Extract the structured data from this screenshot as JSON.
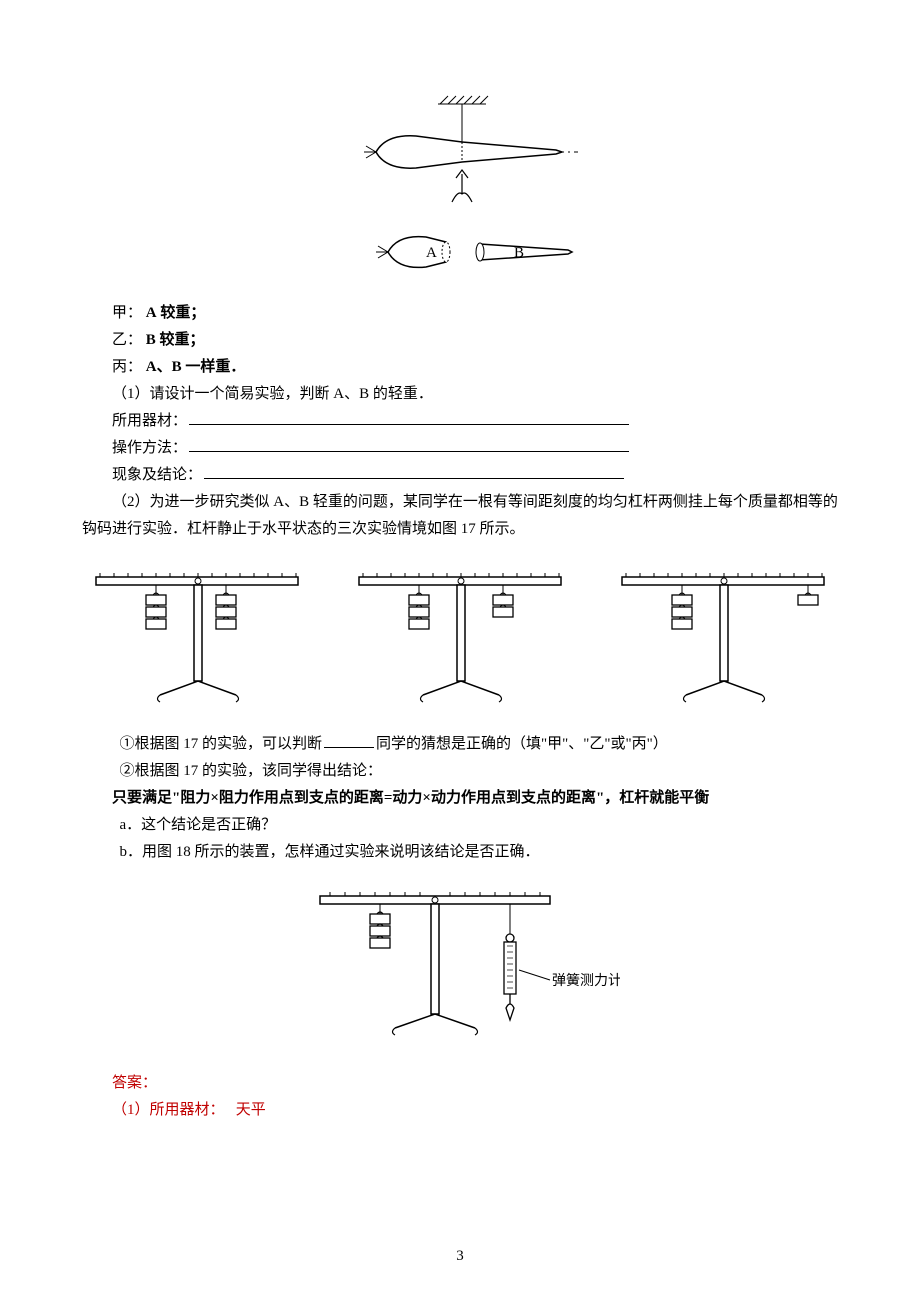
{
  "topFigure": {
    "label_A": "A",
    "label_B": "B"
  },
  "hypotheses": {
    "jia_label": "甲：",
    "jia_text_prefix": " ",
    "jia_bold": "A",
    "jia_text": " 较重；",
    "yi_label": "乙：",
    "yi_bold": "B",
    "yi_text": " 较重；",
    "bing_label": "丙：",
    "bing_bold": "A、B",
    "bing_text": " 一样重．"
  },
  "q1": {
    "line": "（1）请设计一个简易实验，判断 A、B 的轻重．",
    "equip_label": "所用器材：",
    "method_label": "操作方法：",
    "result_label": "现象及结论："
  },
  "q2": {
    "text": "（2）为进一步研究类似 A、B 轻重的问题，某同学在一根有等间距刻度的均匀杠杆两侧挂上每个质量都相等的钩码进行实验．杠杆静止于水平状态的三次实验情境如图 17 所示。"
  },
  "sub1": {
    "prefix": "①根据图 17 的实验，可以判断",
    "suffix": "同学的猜想是正确的（填\"甲\"、\"乙\"或\"丙\"）"
  },
  "sub2_intro": "②根据图 17 的实验，该同学得出结论：",
  "conclusion_bold": "只要满足\"阻力×阻力作用点到支点的距离=动力×动力作用点到支点的距离\"，杠杆就能平衡",
  "sub2a": "a．这个结论是否正确？",
  "sub2b": "b．用图 18 所示的装置，怎样通过实验来说明该结论是否正确．",
  "fig18": {
    "spring_label": "弹簧测力计"
  },
  "answer": {
    "header": "答案：",
    "line1_label": "（1）所用器材：",
    "line1_value": "天平"
  },
  "page_number": "3",
  "style": {
    "blank_width_long": 440,
    "blank_width_med": 420,
    "blank_width_short": 50,
    "text_color": "#000000",
    "answer_color": "#c00000",
    "font_body": 15
  }
}
